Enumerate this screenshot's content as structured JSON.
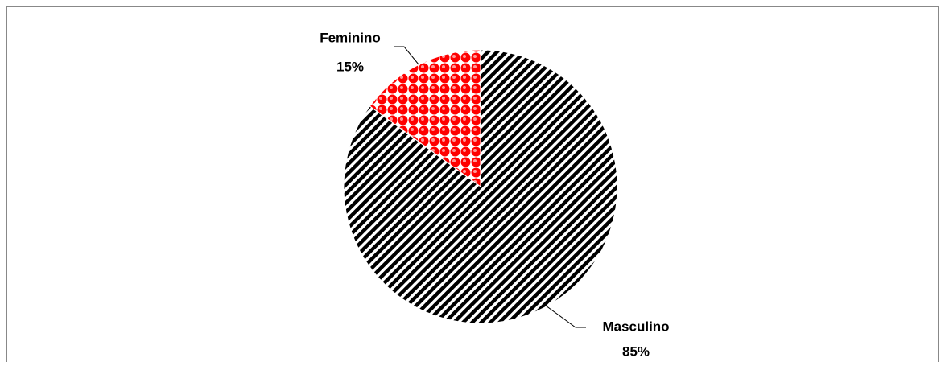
{
  "chart_data": {
    "type": "pie",
    "categories": [
      "Feminino",
      "Masculino"
    ],
    "values": [
      15,
      85
    ],
    "value_labels": [
      "15%",
      "85%"
    ],
    "colors": [
      "#ff0000",
      "#000000"
    ]
  }
}
